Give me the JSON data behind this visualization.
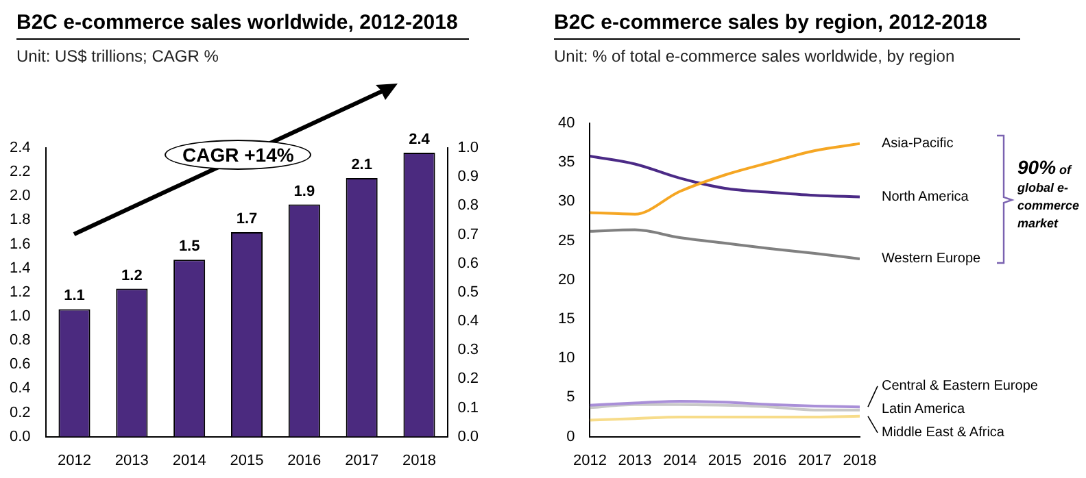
{
  "chart_data": [
    {
      "type": "bar",
      "title": "B2C e-commerce sales worldwide, 2012-2018",
      "subtitle": "Unit: US$ trillions; CAGR %",
      "categories": [
        "2012",
        "2013",
        "2014",
        "2015",
        "2016",
        "2017",
        "2018"
      ],
      "values": [
        1.06,
        1.23,
        1.47,
        1.7,
        1.93,
        2.15,
        2.36
      ],
      "value_labels": [
        "1.1",
        "1.2",
        "1.5",
        "1.7",
        "1.9",
        "2.1",
        "2.4"
      ],
      "color": "#4b2a7f",
      "ylim": [
        0,
        2.4
      ],
      "yticks": [
        {
          "value": 0,
          "label": "0.0"
        },
        0.2,
        0.4,
        0.6,
        0.8,
        {
          "value": 1,
          "label": "1.0"
        },
        1.2,
        1.4,
        1.6,
        1.8,
        {
          "value": 2,
          "label": "2.0"
        },
        2.2,
        2.4
      ],
      "y2lim": [
        0,
        1
      ],
      "y2ticks": [
        {
          "value": 0,
          "label": "0.0"
        },
        0.1,
        0.2,
        0.3,
        0.4,
        0.5,
        0.6,
        0.7,
        0.8,
        0.9,
        {
          "value": 1,
          "label": "1.0"
        }
      ],
      "annotations": [
        "CAGR +14%"
      ],
      "grid": false,
      "legend": false
    },
    {
      "type": "line",
      "title": "B2C e-commerce sales by region, 2012-2018",
      "subtitle": "Unit: % of total e-commerce sales worldwide, by region",
      "x": [
        2012,
        2013,
        2014,
        2015,
        2016,
        2017,
        2018
      ],
      "xlim": [
        2012,
        2018
      ],
      "xticks": [
        2012,
        2013,
        2014,
        2015,
        2016,
        2017,
        2018
      ],
      "ylim": [
        0,
        40
      ],
      "yticks": [
        0,
        5,
        10,
        15,
        20,
        25,
        30,
        35,
        40
      ],
      "series": [
        {
          "name": "Asia-Pacific",
          "color": "#f5a623",
          "values": [
            28.6,
            28.4,
            31.3,
            33.4,
            35.0,
            36.5,
            37.4
          ]
        },
        {
          "name": "North America",
          "color": "#4b2a86",
          "values": [
            35.8,
            34.8,
            33.0,
            31.7,
            31.2,
            30.8,
            30.6
          ]
        },
        {
          "name": "Western Europe",
          "color": "#808080",
          "values": [
            26.2,
            26.4,
            25.4,
            24.7,
            24.0,
            23.4,
            22.7
          ]
        },
        {
          "name": "Central & Eastern Europe",
          "color": "#a98fd8",
          "values": [
            4.0,
            4.3,
            4.5,
            4.4,
            4.1,
            3.9,
            3.8
          ]
        },
        {
          "name": "Latin America",
          "color": "#c8c8c8",
          "values": [
            3.7,
            4.1,
            4.1,
            4.0,
            3.8,
            3.4,
            3.4
          ]
        },
        {
          "name": "Middle East & Africa",
          "color": "#f7dc8a",
          "values": [
            2.1,
            2.3,
            2.5,
            2.5,
            2.5,
            2.5,
            2.6
          ]
        }
      ],
      "annotations": [
        "90% of global e-commerce market"
      ],
      "grid": false,
      "legend": false
    }
  ]
}
